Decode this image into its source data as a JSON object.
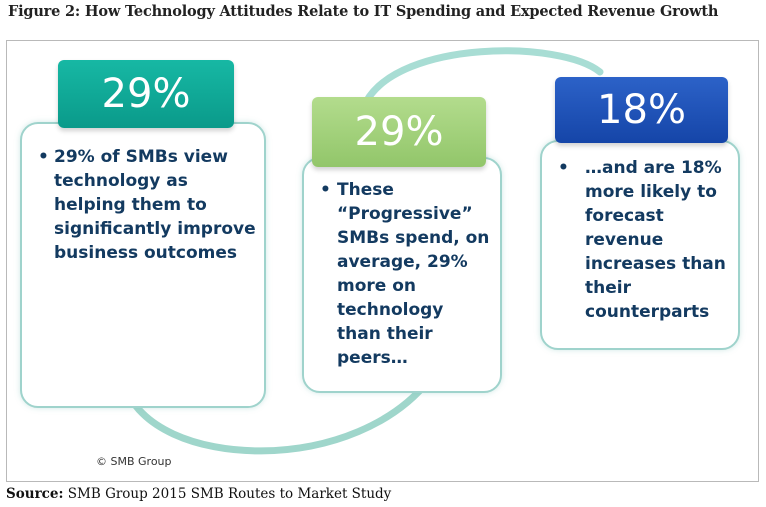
{
  "figure_title": "Figure 2: How Technology Attitudes Relate to IT Spending and Expected Revenue Growth",
  "cards": [
    {
      "stat": "29%",
      "color": "#0fa896",
      "text": "29% of SMBs view technology as helping them to significantly improve business outcomes"
    },
    {
      "stat": "29%",
      "color": "#a4d27b",
      "text": "These “Progressive” SMBs spend, on average, 29% more on technology than their peers…"
    },
    {
      "stat": "18%",
      "color": "#1f55bb",
      "text": "…and are 18% more likely to forecast revenue increases than their counterparts"
    }
  ],
  "bullet_symbol": "•",
  "copyright": "© SMB Group",
  "source_label": "Source:",
  "source_text": "SMB Group 2015 SMB Routes to Market Study"
}
